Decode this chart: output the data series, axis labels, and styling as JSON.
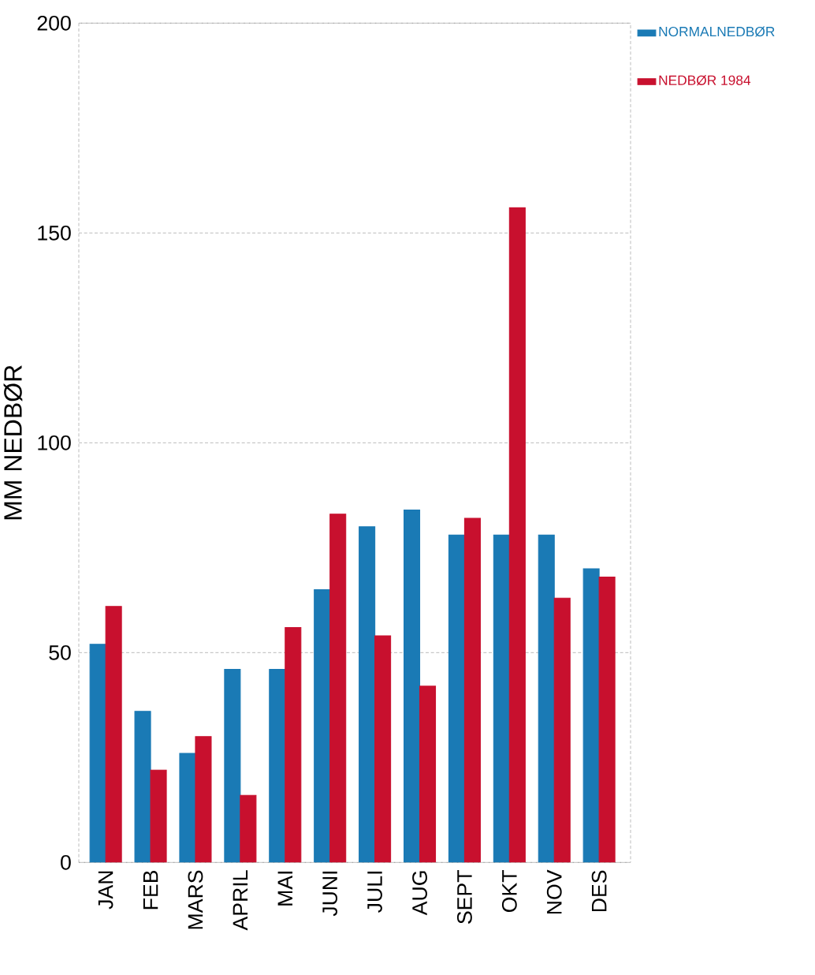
{
  "chart_data": {
    "type": "bar",
    "ylabel": "MM NEDBØR",
    "categories": [
      "JAN",
      "FEB",
      "MARS",
      "APRIL",
      "MAI",
      "JUNI",
      "JULI",
      "AUG",
      "SEPT",
      "OKT",
      "NOV",
      "DES"
    ],
    "series": [
      {
        "name": "NORMALNEDBØR",
        "color": "#1a7ab5",
        "values": [
          52,
          36,
          26,
          46,
          46,
          65,
          80,
          84,
          78,
          78,
          78,
          70
        ]
      },
      {
        "name": "NEDBØR 1984",
        "color": "#c8102e",
        "values": [
          61,
          22,
          30,
          16,
          56,
          83,
          54,
          42,
          82,
          156,
          63,
          68
        ]
      }
    ],
    "ylim": [
      0,
      200
    ],
    "yticks": [
      0,
      50,
      100,
      150,
      200
    ],
    "grid": "y",
    "legend": "top right"
  }
}
